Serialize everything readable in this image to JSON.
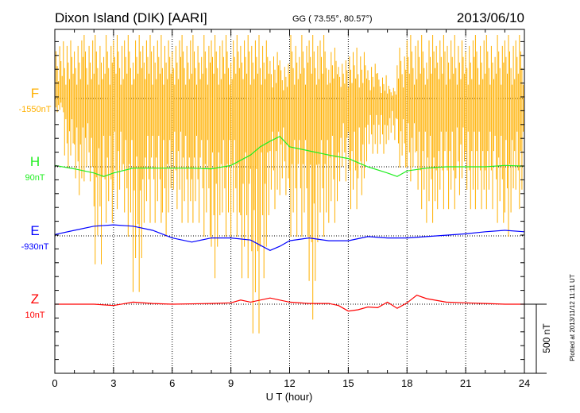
{
  "header": {
    "station": "Dixon Island (DIK)  [AARI]",
    "coords": "GG ( 73.55°,  80.57°)",
    "date": "2013/06/10"
  },
  "plotted_note": "Plotted at 2013/11/12 11:11  UT",
  "chart_data": {
    "type": "line",
    "title": "Dixon Island (DIK)  [AARI]",
    "xlabel": "U T (hour)",
    "xlim": [
      0,
      24
    ],
    "x_ticks": [
      "0",
      "3",
      "6",
      "9",
      "12",
      "15",
      "18",
      "21",
      "24"
    ],
    "scale_bar": "500 nT",
    "grid": true,
    "series": [
      {
        "name": "F",
        "baseline_label": "-1550nT",
        "color": "#ffb000",
        "kind": "range_per_half_hour",
        "x": [
          0,
          0.5,
          1,
          1.5,
          2,
          2.5,
          3,
          3.5,
          4,
          4.5,
          5,
          5.5,
          6,
          6.5,
          7,
          7.5,
          8,
          8.5,
          9,
          9.5,
          10,
          10.5,
          11,
          11.5,
          12,
          12.5,
          13,
          13.5,
          14,
          14.5,
          15,
          15.5,
          16,
          16.5,
          17,
          17.5,
          18,
          18.5,
          19,
          19.5,
          20,
          20.5,
          21,
          21.5,
          22,
          22.5,
          23,
          23.5
        ],
        "ranges": [
          [
            -100,
            450
          ],
          [
            -500,
            500
          ],
          [
            -700,
            500
          ],
          [
            -600,
            500
          ],
          [
            -1200,
            500
          ],
          [
            -900,
            500
          ],
          [
            -800,
            500
          ],
          [
            -1000,
            500
          ],
          [
            -1400,
            500
          ],
          [
            -900,
            500
          ],
          [
            -900,
            500
          ],
          [
            -1000,
            500
          ],
          [
            -800,
            500
          ],
          [
            -900,
            500
          ],
          [
            -900,
            500
          ],
          [
            -1000,
            500
          ],
          [
            -1300,
            500
          ],
          [
            -1000,
            500
          ],
          [
            -1000,
            500
          ],
          [
            -1300,
            500
          ],
          [
            -1700,
            500
          ],
          [
            -1300,
            500
          ],
          [
            -800,
            400
          ],
          [
            -700,
            300
          ],
          [
            -1000,
            500
          ],
          [
            -1000,
            500
          ],
          [
            -1600,
            500
          ],
          [
            -1000,
            500
          ],
          [
            -900,
            400
          ],
          [
            -600,
            300
          ],
          [
            -800,
            400
          ],
          [
            -700,
            400
          ],
          [
            -400,
            300
          ],
          [
            -400,
            200
          ],
          [
            -300,
            100
          ],
          [
            -500,
            400
          ],
          [
            -600,
            500
          ],
          [
            -800,
            500
          ],
          [
            -900,
            500
          ],
          [
            -800,
            500
          ],
          [
            -800,
            500
          ],
          [
            -700,
            500
          ],
          [
            -800,
            500
          ],
          [
            -800,
            500
          ],
          [
            -800,
            500
          ],
          [
            -900,
            500
          ],
          [
            -1000,
            500
          ],
          [
            -800,
            500
          ]
        ]
      },
      {
        "name": "H",
        "baseline_label": "90nT",
        "color": "#22ee22",
        "x": [
          0,
          1,
          2,
          2.5,
          3,
          4,
          5,
          6,
          7,
          8,
          9,
          10,
          10.5,
          11,
          11.5,
          12,
          13,
          14,
          15,
          16,
          17,
          17.5,
          18,
          19,
          20,
          21,
          22,
          23,
          24
        ],
        "values": [
          10,
          -15,
          -45,
          -70,
          -45,
          -10,
          -10,
          -10,
          -10,
          -15,
          10,
          85,
          145,
          185,
          220,
          145,
          115,
          85,
          60,
          0,
          -45,
          -70,
          -30,
          -10,
          0,
          0,
          0,
          10,
          5
        ]
      },
      {
        "name": "E",
        "baseline_label": "-930nT",
        "color": "#0000ff",
        "x": [
          0,
          1,
          2,
          3,
          4,
          5,
          6,
          7,
          8,
          9,
          10,
          11,
          11.5,
          12,
          13,
          14,
          15,
          16,
          17,
          18,
          19,
          20,
          21,
          22,
          23,
          24
        ],
        "values": [
          10,
          40,
          70,
          80,
          70,
          40,
          -15,
          -45,
          -15,
          -15,
          -30,
          -105,
          -75,
          -35,
          -15,
          -35,
          -35,
          -5,
          -15,
          -15,
          -5,
          5,
          15,
          30,
          40,
          30
        ]
      },
      {
        "name": "Z",
        "baseline_label": "10nT",
        "color": "#ff0000",
        "x": [
          0,
          2,
          3,
          4,
          5,
          6,
          8,
          9,
          9.5,
          10,
          11,
          12,
          13,
          14,
          14.5,
          15,
          15.5,
          16,
          16.5,
          17,
          17.5,
          18,
          18.5,
          19,
          20,
          21,
          22,
          23,
          24
        ],
        "values": [
          0,
          0,
          -10,
          15,
          5,
          0,
          5,
          10,
          30,
          15,
          45,
          15,
          5,
          5,
          -10,
          -50,
          -40,
          -20,
          -25,
          15,
          -30,
          10,
          65,
          40,
          15,
          10,
          5,
          0,
          0
        ]
      }
    ]
  }
}
